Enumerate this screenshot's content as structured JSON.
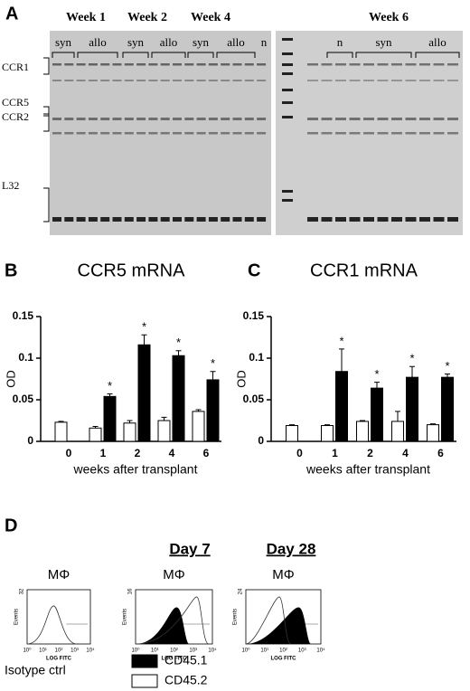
{
  "panel_a": {
    "label": "A",
    "weeks": [
      "Week 1",
      "Week 2",
      "Week 4",
      "Week 6"
    ],
    "groups": [
      "syn",
      "allo",
      "syn",
      "allo",
      "syn",
      "allo",
      "n",
      "n",
      "syn",
      "allo"
    ],
    "bands": [
      "CCR1",
      "CCR5",
      "CCR2",
      "L32"
    ]
  },
  "chart_data": [
    {
      "type": "bar",
      "panel": "B",
      "title": "CCR5 mRNA",
      "ylabel": "OD",
      "xlabel": "weeks after transplant",
      "categories": [
        "0",
        "1",
        "2",
        "4",
        "6"
      ],
      "series": [
        {
          "color": "#ffffff",
          "values": [
            0.023,
            0.016,
            0.022,
            0.025,
            0.036
          ],
          "errors": [
            0.001,
            0.002,
            0.003,
            0.004,
            0.002
          ]
        },
        {
          "color": "#000000",
          "values": [
            null,
            0.054,
            0.116,
            0.103,
            0.074
          ],
          "errors": [
            null,
            0.003,
            0.012,
            0.006,
            0.01
          ],
          "marks": [
            null,
            "*",
            "*",
            "*",
            "*"
          ]
        }
      ],
      "ylim": [
        0,
        0.15
      ],
      "yticks": [
        0,
        0.05,
        0.1,
        0.15
      ]
    },
    {
      "type": "bar",
      "panel": "C",
      "title": "CCR1 mRNA",
      "ylabel": "OD",
      "xlabel": "weeks after transplant",
      "categories": [
        "0",
        "1",
        "2",
        "4",
        "6"
      ],
      "series": [
        {
          "color": "#ffffff",
          "values": [
            0.019,
            0.019,
            0.024,
            0.024,
            0.02
          ],
          "errors": [
            0.001,
            0.001,
            0.001,
            0.012,
            0.001
          ]
        },
        {
          "color": "#000000",
          "values": [
            null,
            0.084,
            0.064,
            0.077,
            0.077
          ],
          "errors": [
            null,
            0.027,
            0.007,
            0.013,
            0.004
          ],
          "marks": [
            null,
            "*",
            "*",
            "*",
            "*"
          ]
        }
      ],
      "ylim": [
        0,
        0.15
      ],
      "yticks": [
        0,
        0.05,
        0.1,
        0.15
      ]
    }
  ],
  "panel_d": {
    "label": "D",
    "days": [
      "Day 7",
      "Day 28"
    ],
    "cell": "MΦ",
    "ylabel": "Events",
    "xlabel": "LOG FITC",
    "ymax": [
      "32",
      "16",
      "24"
    ],
    "xticks": [
      "10⁰",
      "10¹",
      "10²",
      "10³",
      "10⁴"
    ],
    "legend": [
      "Isotype ctrl",
      "CD45.1",
      "CD45.2"
    ]
  }
}
